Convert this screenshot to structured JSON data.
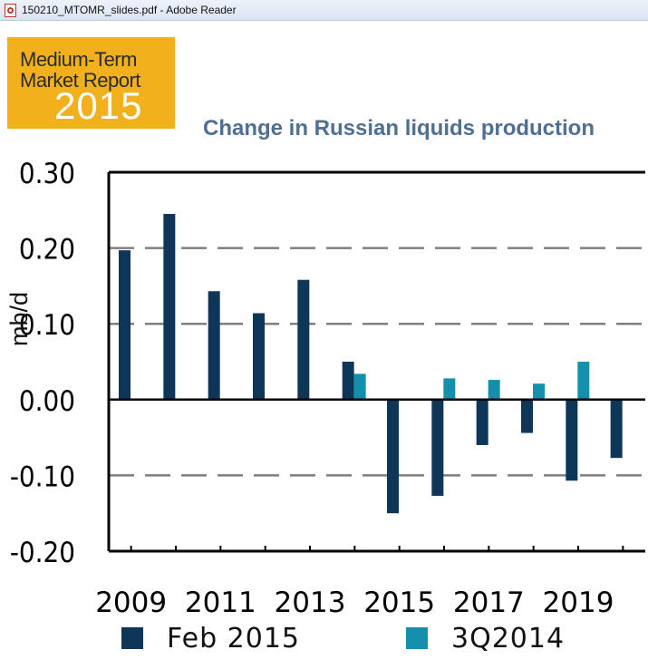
{
  "window": {
    "title": "150210_MTOMR_slides.pdf - Adobe Reader"
  },
  "logo": {
    "line1": "Medium-Term",
    "line2": "Market Report",
    "year": "2015"
  },
  "colors": {
    "feb2015": "#0d3659",
    "q32014": "#1490ad",
    "gridline": "#7f7f7f",
    "title": "#4f6f93",
    "logo_bg": "#f2b01c"
  },
  "chart_data": {
    "type": "bar",
    "title": "Change in Russian liquids production",
    "ylabel": "mb/d",
    "ylim": [
      -0.2,
      0.3
    ],
    "yticks": [
      0.3,
      0.2,
      0.1,
      0.0,
      -0.1,
      -0.2
    ],
    "ytick_labels": [
      "0.30",
      "0.20",
      "0.10",
      "0.00",
      "-0.10",
      "-0.20"
    ],
    "categories": [
      "2009",
      "2010",
      "2011",
      "2012",
      "2013",
      "2014",
      "2015",
      "2016",
      "2017",
      "2018",
      "2019",
      "2020"
    ],
    "xtick_labels": [
      "2009",
      "",
      "2011",
      "",
      "2013",
      "",
      "2015",
      "",
      "2017",
      "",
      "2019",
      ""
    ],
    "grid": "dashed horizontal at 0.20, 0.10, -0.10",
    "legend_position": "bottom",
    "series": [
      {
        "name": "Feb 2015",
        "values": [
          0.197,
          0.245,
          0.143,
          0.114,
          0.158,
          0.05,
          -0.15,
          -0.127,
          -0.06,
          -0.044,
          -0.107,
          -0.077
        ]
      },
      {
        "name": "3Q2014",
        "values": [
          null,
          null,
          null,
          null,
          null,
          0.034,
          null,
          0.028,
          0.026,
          0.021,
          0.05,
          null
        ]
      }
    ]
  }
}
